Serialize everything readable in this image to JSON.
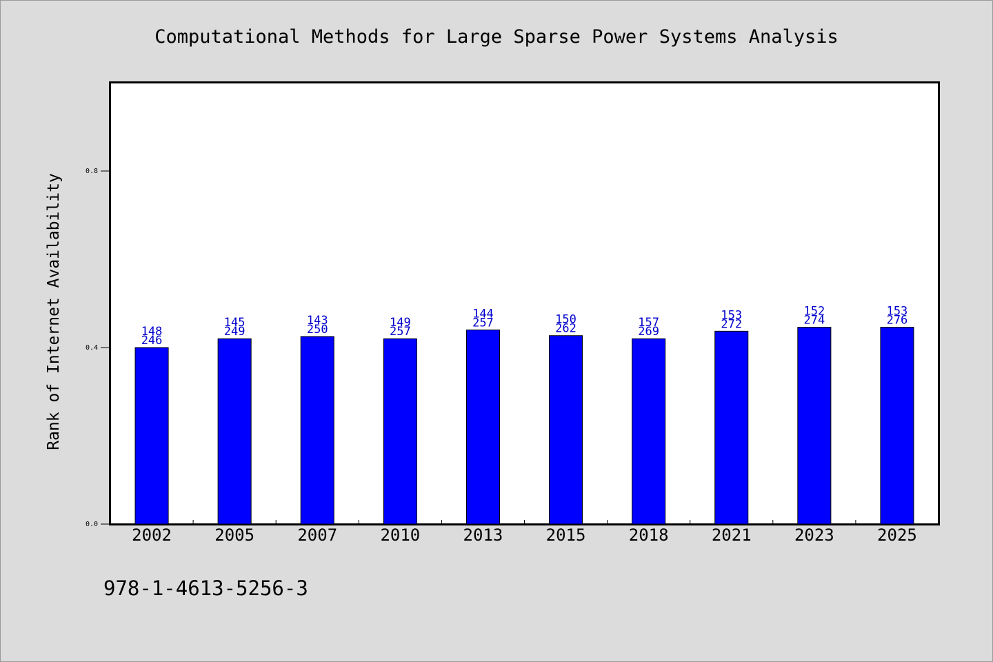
{
  "chart_data": {
    "type": "bar",
    "title": "Computational Methods for Large Sparse Power Systems Analysis",
    "xlabel": "",
    "ylabel": "Rank of Internet Availability",
    "categories": [
      "2002",
      "2005",
      "2007",
      "2010",
      "2013",
      "2015",
      "2018",
      "2021",
      "2023",
      "2025"
    ],
    "values": [
      0.4,
      0.42,
      0.425,
      0.42,
      0.44,
      0.427,
      0.42,
      0.437,
      0.446,
      0.446
    ],
    "bar_labels_top": [
      "148",
      "145",
      "143",
      "149",
      "144",
      "150",
      "157",
      "153",
      "152",
      "153"
    ],
    "bar_labels_bottom": [
      "246",
      "249",
      "250",
      "257",
      "257",
      "262",
      "269",
      "272",
      "274",
      "276"
    ],
    "ylim": [
      0.0,
      1.0
    ],
    "yticks": [
      "0.0",
      "0.4",
      "0.8"
    ],
    "ytick_values": [
      0.0,
      0.4,
      0.8
    ],
    "grid": false,
    "legend": "none",
    "colors": {
      "bar_fill": "#0000ff",
      "bar_stroke": "#000000",
      "bar_label": "#0000cc",
      "plot_background": "#ffffff",
      "figure_background": "#dcdcdc"
    }
  },
  "footer": {
    "isbn": "978-1-4613-5256-3"
  }
}
